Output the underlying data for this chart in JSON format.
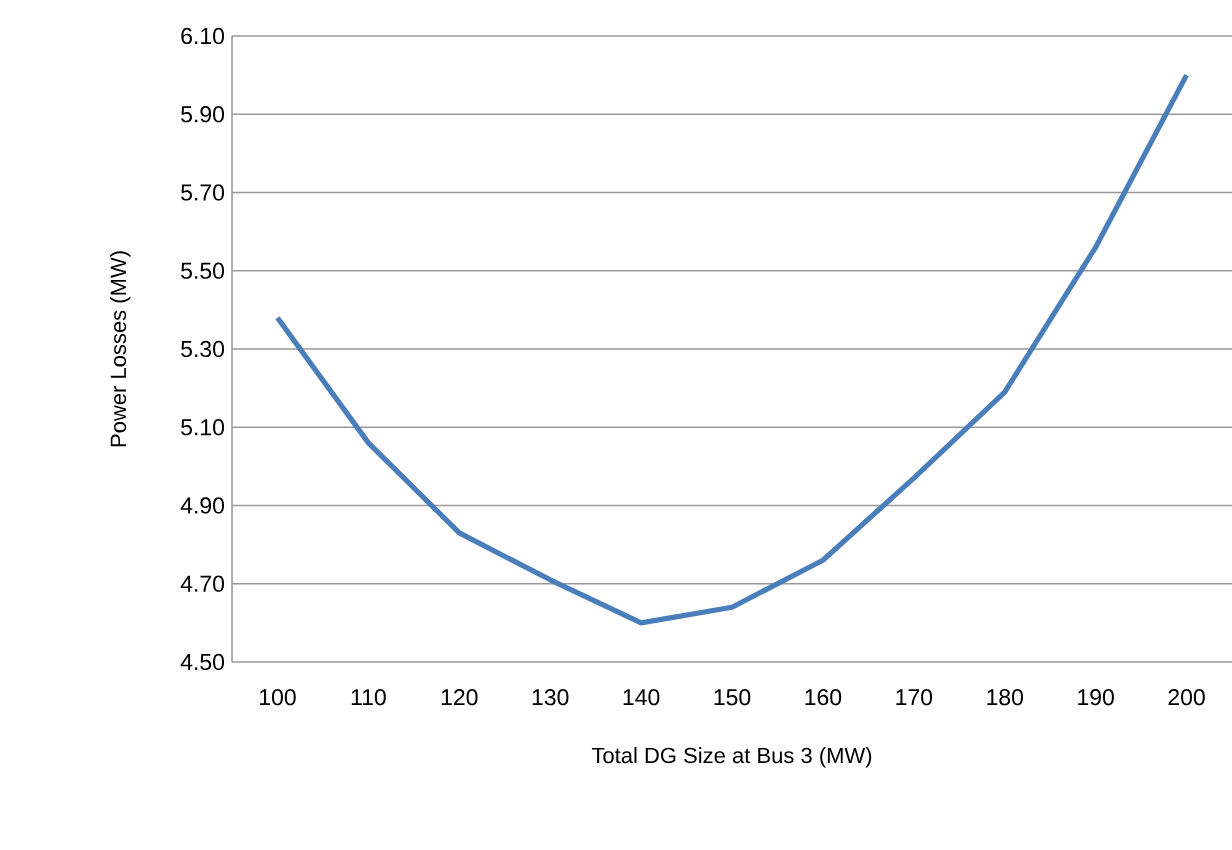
{
  "chart_data": {
    "type": "line",
    "xlabel": "Total DG Size at Bus 3 (MW)",
    "ylabel": "Power Losses (MW)",
    "categories": [
      "100",
      "110",
      "120",
      "130",
      "140",
      "150",
      "160",
      "170",
      "180",
      "190",
      "200"
    ],
    "series": [
      {
        "color": "#4a7ebb",
        "values": [
          5.38,
          5.06,
          4.83,
          4.71,
          4.6,
          4.64,
          4.76,
          4.97,
          5.19,
          5.56,
          6.0
        ]
      }
    ],
    "ylim": [
      4.5,
      6.1
    ],
    "yticks": [
      {
        "value": 4.5,
        "label": "4.50"
      },
      {
        "value": 4.7,
        "label": "4.70"
      },
      {
        "value": 4.9,
        "label": "4.90"
      },
      {
        "value": 5.1,
        "label": "5.10"
      },
      {
        "value": 5.3,
        "label": "5.30"
      },
      {
        "value": 5.5,
        "label": "5.50"
      },
      {
        "value": 5.7,
        "label": "5.70"
      },
      {
        "value": 5.9,
        "label": "5.90"
      },
      {
        "value": 6.1,
        "label": "6.10"
      }
    ],
    "grid": "y",
    "marker": "none",
    "line_style": "solid"
  }
}
